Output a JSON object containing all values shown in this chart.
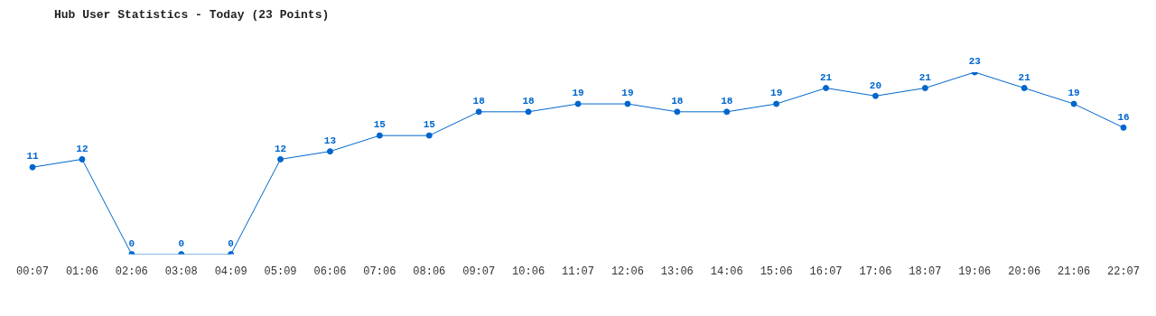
{
  "chart_data": {
    "type": "line",
    "title": "Hub User Statistics - Today (23 Points)",
    "categories": [
      "00:07",
      "01:06",
      "02:06",
      "03:08",
      "04:09",
      "05:09",
      "06:06",
      "07:06",
      "08:06",
      "09:07",
      "10:06",
      "11:07",
      "12:06",
      "13:06",
      "14:06",
      "15:06",
      "16:07",
      "17:06",
      "18:07",
      "19:06",
      "20:06",
      "21:06",
      "22:07"
    ],
    "series": [
      {
        "color": "#0066cc",
        "values": [
          11,
          12,
          0,
          0,
          0,
          12,
          13,
          15,
          15,
          18,
          18,
          19,
          19,
          18,
          18,
          19,
          21,
          20,
          21,
          23,
          21,
          19,
          16
        ]
      }
    ],
    "data_labels": true,
    "marker": "circle",
    "line_style": "solid",
    "grid": false,
    "legend": false
  }
}
